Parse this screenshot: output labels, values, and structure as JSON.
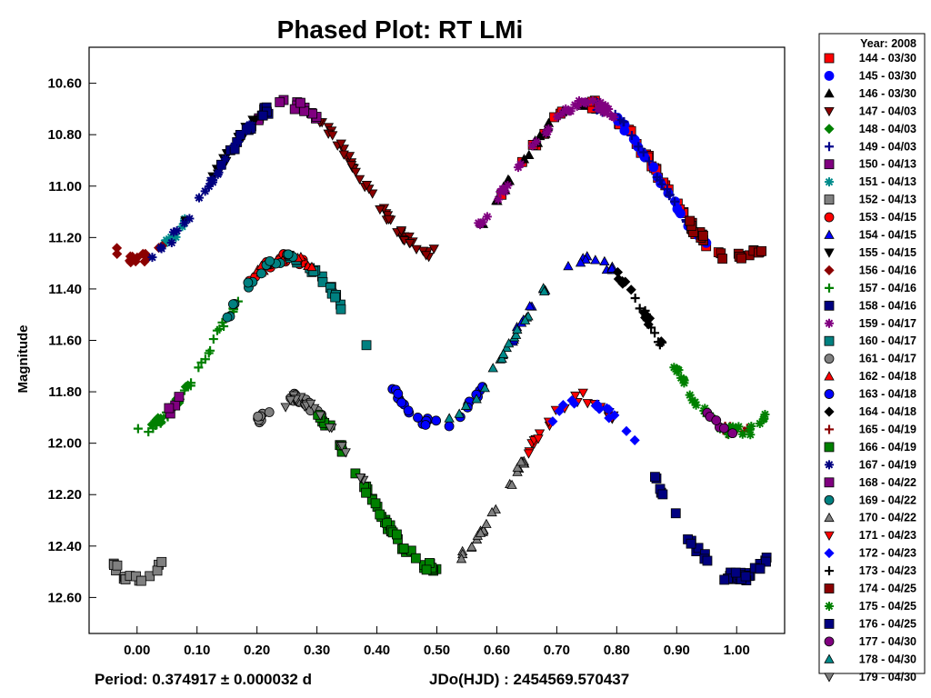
{
  "chart_data": {
    "type": "scatter",
    "title": "Phased Plot: RT LMi",
    "ylabel": "Magnitude",
    "xlabel": "",
    "footer": {
      "period": "Period: 0.374917 ± 0.000032 d",
      "epoch": "JDo(HJD) : 2454569.570437"
    },
    "xlim": [
      -0.08,
      1.08
    ],
    "ylim": [
      10.46,
      12.74
    ],
    "y_inverted": true,
    "grid": false,
    "x_ticks": [
      "0.00",
      "0.10",
      "0.20",
      "0.30",
      "0.40",
      "0.50",
      "0.60",
      "0.70",
      "0.80",
      "0.90",
      "1.00"
    ],
    "y_ticks": [
      "10.60",
      "10.80",
      "11.00",
      "11.20",
      "11.40",
      "11.60",
      "11.80",
      "12.00",
      "12.20",
      "12.40",
      "12.60"
    ],
    "legend_title": "Year: 2008",
    "legend_position": "right-outside",
    "curves": [
      {
        "offset": 0.0,
        "minI": 11.28,
        "minII": 11.26,
        "maxI": 10.68,
        "maxII": 10.68
      },
      {
        "offset": 0.0,
        "minI": 11.95,
        "minII": 11.92,
        "maxI": 11.28,
        "maxII": 11.28
      },
      {
        "offset": 0.0,
        "minI": 12.52,
        "minII": 12.48,
        "maxI": 11.85,
        "maxII": 11.82
      }
    ],
    "series": [
      {
        "name": "144 - 03/30",
        "marker": "square",
        "color": "#ff0000",
        "edge": "#000000",
        "curve": 0,
        "x": [
          0.6,
          0.98
        ],
        "n": 40
      },
      {
        "name": "145 - 03/30",
        "marker": "circle",
        "color": "#0000ff",
        "edge": "#0000ff",
        "curve": 0,
        "x": [
          0.8,
          0.95
        ],
        "n": 20
      },
      {
        "name": "146 - 03/30",
        "marker": "triangle-up",
        "color": "#000000",
        "edge": "#000000",
        "curve": 0,
        "x": [
          0.55,
          0.75
        ],
        "n": 20
      },
      {
        "name": "147 - 04/03",
        "marker": "triangle-down",
        "color": "#8b0000",
        "edge": "#000000",
        "curve": 0,
        "x": [
          0.3,
          0.5
        ],
        "n": 50
      },
      {
        "name": "148 - 04/03",
        "marker": "diamond",
        "color": "#008000",
        "edge": "#008000",
        "curve": 1,
        "x": [
          0.02,
          0.1
        ],
        "n": 12
      },
      {
        "name": "149 - 04/03",
        "marker": "plus",
        "color": "#00008b",
        "edge": "#00008b",
        "curve": 0,
        "x": [
          0.76,
          0.92
        ],
        "n": 20
      },
      {
        "name": "150 - 04/13",
        "marker": "square",
        "color": "#800080",
        "edge": "#000000",
        "curve": 0,
        "x": [
          0.2,
          0.3
        ],
        "n": 15
      },
      {
        "name": "151 - 04/13",
        "marker": "star",
        "color": "#008b8b",
        "edge": "#008b8b",
        "curve": 0,
        "x": [
          0.04,
          0.1
        ],
        "n": 8
      },
      {
        "name": "152 - 04/13",
        "marker": "square",
        "color": "#808080",
        "edge": "#000000",
        "curve": 2,
        "x": [
          -0.04,
          0.05
        ],
        "n": 15
      },
      {
        "name": "153 - 04/15",
        "marker": "circle",
        "color": "#ff0000",
        "edge": "#000000",
        "curve": 1,
        "x": [
          0.18,
          0.3
        ],
        "n": 15
      },
      {
        "name": "154 - 04/15",
        "marker": "triangle-up",
        "color": "#0000ff",
        "edge": "#000000",
        "curve": 1,
        "x": [
          0.6,
          0.8
        ],
        "n": 20
      },
      {
        "name": "155 - 04/15",
        "marker": "triangle-down",
        "color": "#000000",
        "edge": "#000000",
        "curve": 0,
        "x": [
          0.08,
          0.2
        ],
        "n": 15
      },
      {
        "name": "156 - 04/16",
        "marker": "diamond",
        "color": "#8b0000",
        "edge": "#8b0000",
        "curve": 0,
        "x": [
          -0.04,
          0.05
        ],
        "n": 15
      },
      {
        "name": "157 - 04/16",
        "marker": "plus",
        "color": "#008000",
        "edge": "#008000",
        "curve": 1,
        "x": [
          0.0,
          0.18
        ],
        "n": 30
      },
      {
        "name": "158 - 04/16",
        "marker": "square",
        "color": "#000080",
        "edge": "#000000",
        "curve": 0,
        "x": [
          0.12,
          0.22
        ],
        "n": 15
      },
      {
        "name": "159 - 04/17",
        "marker": "star",
        "color": "#800080",
        "edge": "#800080",
        "curve": 0,
        "x": [
          0.55,
          0.8
        ],
        "n": 40
      },
      {
        "name": "160 - 04/17",
        "marker": "square",
        "color": "#008080",
        "edge": "#000000",
        "curve": 1,
        "x": [
          0.25,
          0.4
        ],
        "n": 20
      },
      {
        "name": "161 - 04/17",
        "marker": "circle",
        "color": "#808080",
        "edge": "#000000",
        "curve": 2,
        "x": [
          0.2,
          0.32
        ],
        "n": 20
      },
      {
        "name": "162 - 04/18",
        "marker": "triangle-up",
        "color": "#ff0000",
        "edge": "#000000",
        "curve": 1,
        "x": [
          0.2,
          0.3
        ],
        "n": 12
      },
      {
        "name": "163 - 04/18",
        "marker": "circle",
        "color": "#0000ff",
        "edge": "#000000",
        "curve": 1,
        "x": [
          0.4,
          0.58
        ],
        "n": 25
      },
      {
        "name": "164 - 04/18",
        "marker": "diamond",
        "color": "#000000",
        "edge": "#000000",
        "curve": 1,
        "x": [
          0.8,
          0.88
        ],
        "n": 12
      },
      {
        "name": "165 - 04/19",
        "marker": "plus",
        "color": "#8b0000",
        "edge": "#8b0000",
        "curve": 1,
        "x": [
          0.98,
          1.03
        ],
        "n": 8
      },
      {
        "name": "166 - 04/19",
        "marker": "square",
        "color": "#008000",
        "edge": "#000000",
        "curve": 2,
        "x": [
          0.3,
          0.5
        ],
        "n": 45
      },
      {
        "name": "167 - 04/19",
        "marker": "star",
        "color": "#000080",
        "edge": "#000080",
        "curve": 0,
        "x": [
          0.02,
          0.2
        ],
        "n": 25
      },
      {
        "name": "168 - 04/22",
        "marker": "square",
        "color": "#800080",
        "edge": "#000000",
        "curve": 1,
        "x": [
          0.05,
          0.08
        ],
        "n": 4
      },
      {
        "name": "169 - 04/22",
        "marker": "circle",
        "color": "#008080",
        "edge": "#000000",
        "curve": 1,
        "x": [
          0.15,
          0.3
        ],
        "n": 15
      },
      {
        "name": "170 - 04/22",
        "marker": "triangle-up",
        "color": "#808080",
        "edge": "#000000",
        "curve": 2,
        "x": [
          0.52,
          0.65
        ],
        "n": 25
      },
      {
        "name": "171 - 04/23",
        "marker": "triangle-down",
        "color": "#ff0000",
        "edge": "#000000",
        "curve": 2,
        "x": [
          0.65,
          0.8
        ],
        "n": 25
      },
      {
        "name": "172 - 04/23",
        "marker": "diamond",
        "color": "#0000ff",
        "edge": "#0000ff",
        "curve": 2,
        "x": [
          0.68,
          0.85
        ],
        "n": 15
      },
      {
        "name": "173 - 04/23",
        "marker": "plus",
        "color": "#000000",
        "edge": "#000000",
        "curve": 1,
        "x": [
          0.82,
          0.88
        ],
        "n": 10
      },
      {
        "name": "174 - 04/25",
        "marker": "square",
        "color": "#8b0000",
        "edge": "#000000",
        "curve": 0,
        "x": [
          0.92,
          1.05
        ],
        "n": 25
      },
      {
        "name": "175 - 04/25",
        "marker": "star",
        "color": "#008000",
        "edge": "#008000",
        "curve": 1,
        "x": [
          0.88,
          1.05
        ],
        "n": 35
      },
      {
        "name": "176 - 04/25",
        "marker": "square",
        "color": "#000080",
        "edge": "#000000",
        "curve": 2,
        "x": [
          0.85,
          1.05
        ],
        "n": 40
      },
      {
        "name": "177 - 04/30",
        "marker": "circle",
        "color": "#800080",
        "edge": "#000000",
        "curve": 1,
        "x": [
          0.95,
          1.01
        ],
        "n": 6
      },
      {
        "name": "178 - 04/30",
        "marker": "triangle-up",
        "color": "#008b8b",
        "edge": "#000000",
        "curve": 1,
        "x": [
          0.52,
          0.68
        ],
        "n": 20
      },
      {
        "name": "179 - 04/30",
        "marker": "triangle-down",
        "color": "#808080",
        "edge": "#000000",
        "curve": 2,
        "x": [
          0.22,
          0.38
        ],
        "n": 20
      }
    ]
  }
}
